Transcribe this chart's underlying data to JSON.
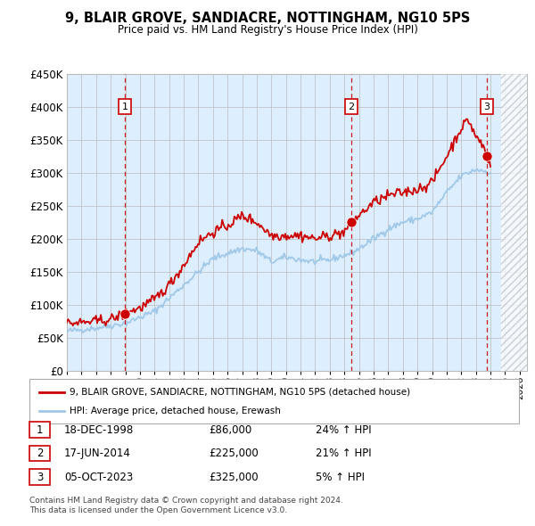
{
  "title": "9, BLAIR GROVE, SANDIACRE, NOTTINGHAM, NG10 5PS",
  "subtitle": "Price paid vs. HM Land Registry's House Price Index (HPI)",
  "legend_line1": "9, BLAIR GROVE, SANDIACRE, NOTTINGHAM, NG10 5PS (detached house)",
  "legend_line2": "HPI: Average price, detached house, Erewash",
  "footer1": "Contains HM Land Registry data © Crown copyright and database right 2024.",
  "footer2": "This data is licensed under the Open Government Licence v3.0.",
  "sales": [
    {
      "label": "1",
      "date": "18-DEC-1998",
      "price": 86000,
      "pct": "24%",
      "year": 1998.96
    },
    {
      "label": "2",
      "date": "17-JUN-2014",
      "price": 225000,
      "pct": "21%",
      "year": 2014.46
    },
    {
      "label": "3",
      "date": "05-OCT-2023",
      "price": 325000,
      "pct": "5%",
      "year": 2023.76
    }
  ],
  "hpi_color": "#a0c8e8",
  "price_color": "#cc0000",
  "sale_marker_color": "#cc0000",
  "vline_color": "#cc0000",
  "bg_color": "#ddeeff",
  "grid_color": "#bbbbbb",
  "hatch_start": 2024.75,
  "xmin": 1995.0,
  "xmax": 2026.5,
  "ymin": 0,
  "ymax": 450000,
  "yticks": [
    0,
    50000,
    100000,
    150000,
    200000,
    250000,
    300000,
    350000,
    400000,
    450000
  ],
  "xtick_years": [
    1995,
    1996,
    1997,
    1998,
    1999,
    2000,
    2001,
    2002,
    2003,
    2004,
    2005,
    2006,
    2007,
    2008,
    2009,
    2010,
    2011,
    2012,
    2013,
    2014,
    2015,
    2016,
    2017,
    2018,
    2019,
    2020,
    2021,
    2022,
    2023,
    2024,
    2025,
    2026
  ],
  "hpi_anchors": [
    [
      1995,
      60000
    ],
    [
      1997,
      65000
    ],
    [
      1999,
      72000
    ],
    [
      2001,
      90000
    ],
    [
      2003,
      130000
    ],
    [
      2005,
      170000
    ],
    [
      2006,
      178000
    ],
    [
      2007,
      185000
    ],
    [
      2008,
      182000
    ],
    [
      2009,
      165000
    ],
    [
      2010,
      172000
    ],
    [
      2011,
      168000
    ],
    [
      2012,
      165000
    ],
    [
      2013,
      168000
    ],
    [
      2014,
      175000
    ],
    [
      2014.46,
      178000
    ],
    [
      2015,
      185000
    ],
    [
      2016,
      200000
    ],
    [
      2017,
      215000
    ],
    [
      2018,
      225000
    ],
    [
      2019,
      230000
    ],
    [
      2020,
      240000
    ],
    [
      2021,
      270000
    ],
    [
      2022,
      295000
    ],
    [
      2023,
      305000
    ],
    [
      2023.76,
      302000
    ],
    [
      2024,
      300000
    ]
  ],
  "price_anchors": [
    [
      1995,
      72000
    ],
    [
      1996,
      73000
    ],
    [
      1997,
      75000
    ],
    [
      1998,
      78000
    ],
    [
      1998.96,
      86000
    ],
    [
      1999,
      88000
    ],
    [
      2000,
      95000
    ],
    [
      2001,
      108000
    ],
    [
      2002,
      130000
    ],
    [
      2003,
      160000
    ],
    [
      2004,
      195000
    ],
    [
      2005,
      210000
    ],
    [
      2006,
      220000
    ],
    [
      2007,
      235000
    ],
    [
      2008,
      225000
    ],
    [
      2009,
      205000
    ],
    [
      2010,
      205000
    ],
    [
      2011,
      205000
    ],
    [
      2012,
      200000
    ],
    [
      2013,
      205000
    ],
    [
      2014,
      210000
    ],
    [
      2014.46,
      225000
    ],
    [
      2015,
      235000
    ],
    [
      2016,
      255000
    ],
    [
      2017,
      265000
    ],
    [
      2018,
      270000
    ],
    [
      2019,
      275000
    ],
    [
      2020,
      285000
    ],
    [
      2021,
      325000
    ],
    [
      2022,
      368000
    ],
    [
      2022.5,
      380000
    ],
    [
      2023,
      355000
    ],
    [
      2023.5,
      340000
    ],
    [
      2023.76,
      325000
    ],
    [
      2024,
      310000
    ]
  ]
}
